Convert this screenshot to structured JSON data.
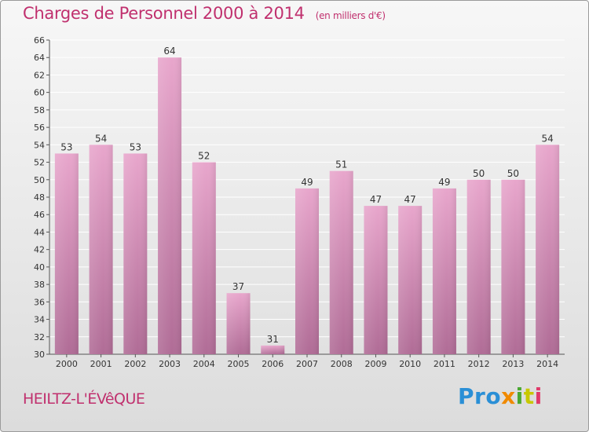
{
  "title": "Charges de Personnel 2000 à 2014",
  "subtitle": "(en milliers d'€)",
  "commune": "HEILTZ-L'ÉVêQUE",
  "logo": {
    "letters": [
      "P",
      "r",
      "o",
      "x",
      "i",
      "t",
      "i"
    ],
    "colors": [
      "#2a8fd6",
      "#2a8fd6",
      "#2a8fd6",
      "#f08a00",
      "#4aa832",
      "#c8c800",
      "#e03a6a"
    ]
  },
  "chart_data": {
    "type": "bar",
    "title": "Charges de Personnel 2000 à 2014",
    "subtitle": "(en milliers d'€)",
    "categories": [
      "2000",
      "2001",
      "2002",
      "2003",
      "2004",
      "2005",
      "2006",
      "2007",
      "2008",
      "2009",
      "2010",
      "2011",
      "2012",
      "2013",
      "2014"
    ],
    "values": [
      53,
      54,
      53,
      64,
      52,
      37,
      31,
      49,
      51,
      47,
      47,
      49,
      50,
      50,
      54
    ],
    "ylim": [
      30,
      66
    ],
    "yticks": [
      30,
      32,
      34,
      36,
      38,
      40,
      42,
      44,
      46,
      48,
      50,
      52,
      54,
      56,
      58,
      60,
      62,
      64,
      66
    ],
    "grid": true,
    "colors": {
      "bar_top": "#e8a6cc",
      "bar_bottom": "#b06c96",
      "grid": "#ffffff"
    }
  }
}
